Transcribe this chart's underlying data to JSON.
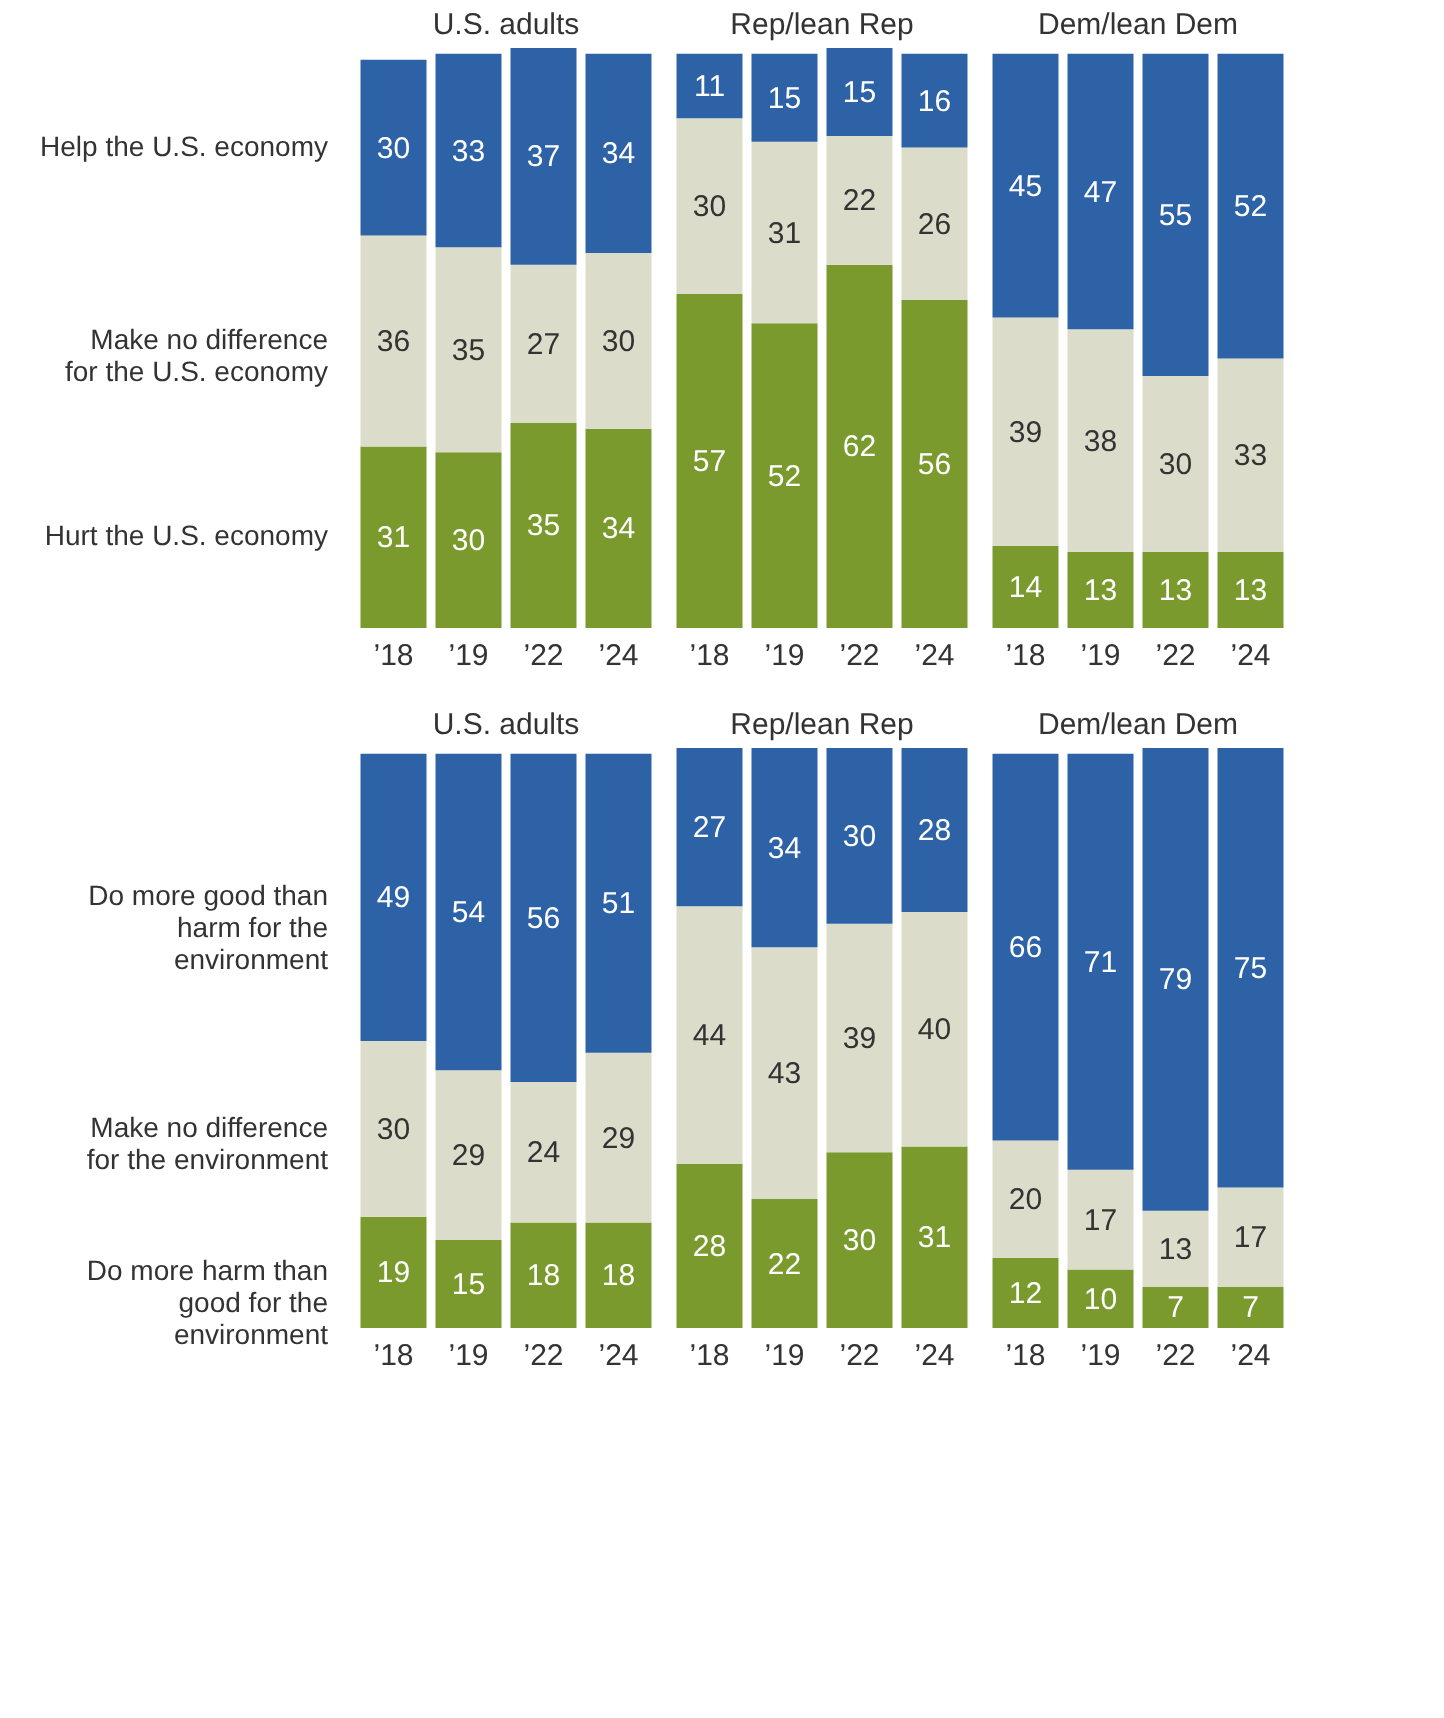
{
  "chart_data": [
    {
      "type": "bar",
      "stacked": true,
      "data_labels": true,
      "title": "U.S. adults",
      "categories": [
        "’18",
        "’19",
        "’22",
        "’24"
      ],
      "series": [
        {
          "name": "Hurt the U.S. economy",
          "color": "#7a9a2e",
          "values": [
            31,
            30,
            35,
            34
          ]
        },
        {
          "name": "Make no difference for the U.S. economy",
          "color": "#dcdccb",
          "values": [
            36,
            35,
            27,
            30
          ]
        },
        {
          "name": "Help the U.S. economy",
          "color": "#2e62a6",
          "values": [
            30,
            33,
            37,
            34
          ]
        }
      ]
    },
    {
      "type": "bar",
      "stacked": true,
      "data_labels": true,
      "title": "Rep/lean Rep",
      "categories": [
        "’18",
        "’19",
        "’22",
        "’24"
      ],
      "series": [
        {
          "color": "#7a9a2e",
          "values": [
            57,
            52,
            62,
            56
          ]
        },
        {
          "color": "#dcdccb",
          "values": [
            30,
            31,
            22,
            26
          ]
        },
        {
          "color": "#2e62a6",
          "values": [
            11,
            15,
            15,
            16
          ]
        }
      ]
    },
    {
      "type": "bar",
      "stacked": true,
      "data_labels": true,
      "title": "Dem/lean Dem",
      "categories": [
        "’18",
        "’19",
        "’22",
        "’24"
      ],
      "series": [
        {
          "color": "#7a9a2e",
          "values": [
            14,
            13,
            13,
            13
          ]
        },
        {
          "color": "#dcdccb",
          "values": [
            39,
            38,
            30,
            33
          ]
        },
        {
          "color": "#2e62a6",
          "values": [
            45,
            47,
            55,
            52
          ]
        }
      ]
    },
    {
      "type": "bar",
      "stacked": true,
      "data_labels": true,
      "title": "U.S. adults",
      "categories": [
        "’18",
        "’19",
        "’22",
        "’24"
      ],
      "series": [
        {
          "name": "Do more harm than good for the environment",
          "color": "#7a9a2e",
          "values": [
            19,
            15,
            18,
            18
          ]
        },
        {
          "name": "Make no difference for the environment",
          "color": "#dcdccb",
          "values": [
            30,
            29,
            24,
            29
          ]
        },
        {
          "name": "Do more good than harm for the environment",
          "color": "#2e62a6",
          "values": [
            49,
            54,
            56,
            51
          ]
        }
      ]
    },
    {
      "type": "bar",
      "stacked": true,
      "data_labels": true,
      "title": "Rep/lean Rep",
      "categories": [
        "’18",
        "’19",
        "’22",
        "’24"
      ],
      "series": [
        {
          "color": "#7a9a2e",
          "values": [
            28,
            22,
            30,
            31
          ]
        },
        {
          "color": "#dcdccb",
          "values": [
            44,
            43,
            39,
            40
          ]
        },
        {
          "color": "#2e62a6",
          "values": [
            27,
            34,
            30,
            28
          ]
        }
      ]
    },
    {
      "type": "bar",
      "stacked": true,
      "data_labels": true,
      "title": "Dem/lean Dem",
      "categories": [
        "’18",
        "’19",
        "’22",
        "’24"
      ],
      "series": [
        {
          "color": "#7a9a2e",
          "values": [
            12,
            10,
            7,
            7
          ]
        },
        {
          "color": "#dcdccb",
          "values": [
            20,
            17,
            13,
            17
          ]
        },
        {
          "color": "#2e62a6",
          "values": [
            66,
            71,
            79,
            75
          ]
        }
      ]
    }
  ]
}
